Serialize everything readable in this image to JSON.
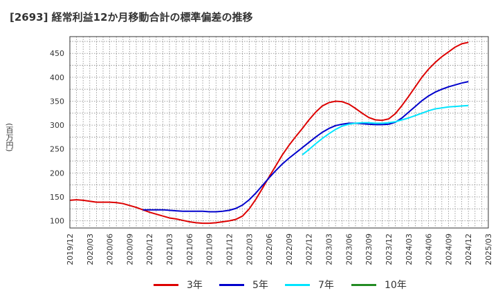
{
  "title": "[2693]  経常利益12か月移動合計の標準偏差の推移",
  "unit_label": "(百万円)",
  "chart_data": {
    "type": "line",
    "title": "[2693]  経常利益12か月移動合計の標準偏差の推移",
    "ylabel": "(百万円)",
    "xlabel": "",
    "ylim": [
      85,
      485
    ],
    "yticks": [
      100,
      150,
      200,
      250,
      300,
      350,
      400,
      450
    ],
    "xlim": [
      "2019/12",
      "2025/03"
    ],
    "xticks": [
      "2019/12",
      "2020/03",
      "2020/06",
      "2020/09",
      "2020/12",
      "2021/03",
      "2021/06",
      "2021/09",
      "2021/12",
      "2022/03",
      "2022/06",
      "2022/09",
      "2022/12",
      "2023/03",
      "2023/06",
      "2023/09",
      "2023/12",
      "2024/03",
      "2024/06",
      "2024/09",
      "2024/12",
      "2025/03"
    ],
    "grid": true,
    "legend_position": "bottom",
    "series": [
      {
        "name": "3年",
        "color": "#dd0000",
        "points": [
          [
            "2019/12",
            143
          ],
          [
            "2020/01",
            144
          ],
          [
            "2020/02",
            143
          ],
          [
            "2020/03",
            141
          ],
          [
            "2020/04",
            139
          ],
          [
            "2020/05",
            139
          ],
          [
            "2020/06",
            139
          ],
          [
            "2020/07",
            138
          ],
          [
            "2020/08",
            136
          ],
          [
            "2020/09",
            132
          ],
          [
            "2020/10",
            128
          ],
          [
            "2020/11",
            123
          ],
          [
            "2020/12",
            118
          ],
          [
            "2021/01",
            114
          ],
          [
            "2021/02",
            110
          ],
          [
            "2021/03",
            106
          ],
          [
            "2021/04",
            104
          ],
          [
            "2021/05",
            101
          ],
          [
            "2021/06",
            98
          ],
          [
            "2021/07",
            96
          ],
          [
            "2021/08",
            95
          ],
          [
            "2021/09",
            95
          ],
          [
            "2021/10",
            96
          ],
          [
            "2021/11",
            98
          ],
          [
            "2021/12",
            100
          ],
          [
            "2022/01",
            103
          ],
          [
            "2022/02",
            110
          ],
          [
            "2022/03",
            125
          ],
          [
            "2022/04",
            145
          ],
          [
            "2022/05",
            168
          ],
          [
            "2022/06",
            192
          ],
          [
            "2022/07",
            215
          ],
          [
            "2022/08",
            238
          ],
          [
            "2022/09",
            258
          ],
          [
            "2022/10",
            276
          ],
          [
            "2022/11",
            293
          ],
          [
            "2022/12",
            311
          ],
          [
            "2023/01",
            327
          ],
          [
            "2023/02",
            340
          ],
          [
            "2023/03",
            347
          ],
          [
            "2023/04",
            350
          ],
          [
            "2023/05",
            349
          ],
          [
            "2023/06",
            344
          ],
          [
            "2023/07",
            335
          ],
          [
            "2023/08",
            325
          ],
          [
            "2023/09",
            316
          ],
          [
            "2023/10",
            311
          ],
          [
            "2023/11",
            310
          ],
          [
            "2023/12",
            313
          ],
          [
            "2024/01",
            324
          ],
          [
            "2024/02",
            341
          ],
          [
            "2024/03",
            360
          ],
          [
            "2024/04",
            380
          ],
          [
            "2024/05",
            400
          ],
          [
            "2024/06",
            417
          ],
          [
            "2024/07",
            431
          ],
          [
            "2024/08",
            443
          ],
          [
            "2024/09",
            453
          ],
          [
            "2024/10",
            463
          ],
          [
            "2024/11",
            470
          ],
          [
            "2024/12",
            473
          ]
        ]
      },
      {
        "name": "5年",
        "color": "#0000cc",
        "points": [
          [
            "2020/11",
            123
          ],
          [
            "2020/12",
            123
          ],
          [
            "2021/01",
            123
          ],
          [
            "2021/02",
            123
          ],
          [
            "2021/03",
            122
          ],
          [
            "2021/04",
            121
          ],
          [
            "2021/05",
            120
          ],
          [
            "2021/06",
            120
          ],
          [
            "2021/07",
            120
          ],
          [
            "2021/08",
            120
          ],
          [
            "2021/09",
            119
          ],
          [
            "2021/10",
            119
          ],
          [
            "2021/11",
            120
          ],
          [
            "2021/12",
            122
          ],
          [
            "2022/01",
            126
          ],
          [
            "2022/02",
            133
          ],
          [
            "2022/03",
            144
          ],
          [
            "2022/04",
            158
          ],
          [
            "2022/05",
            174
          ],
          [
            "2022/06",
            190
          ],
          [
            "2022/07",
            205
          ],
          [
            "2022/08",
            219
          ],
          [
            "2022/09",
            231
          ],
          [
            "2022/10",
            242
          ],
          [
            "2022/11",
            253
          ],
          [
            "2022/12",
            264
          ],
          [
            "2023/01",
            275
          ],
          [
            "2023/02",
            285
          ],
          [
            "2023/03",
            293
          ],
          [
            "2023/04",
            299
          ],
          [
            "2023/05",
            302
          ],
          [
            "2023/06",
            304
          ],
          [
            "2023/07",
            304
          ],
          [
            "2023/08",
            303
          ],
          [
            "2023/09",
            302
          ],
          [
            "2023/10",
            301
          ],
          [
            "2023/11",
            301
          ],
          [
            "2023/12",
            302
          ],
          [
            "2024/01",
            306
          ],
          [
            "2024/02",
            315
          ],
          [
            "2024/03",
            327
          ],
          [
            "2024/04",
            339
          ],
          [
            "2024/05",
            351
          ],
          [
            "2024/06",
            361
          ],
          [
            "2024/07",
            369
          ],
          [
            "2024/08",
            375
          ],
          [
            "2024/09",
            380
          ],
          [
            "2024/10",
            384
          ],
          [
            "2024/11",
            388
          ],
          [
            "2024/12",
            391
          ]
        ]
      },
      {
        "name": "7年",
        "color": "#00e5ff",
        "points": [
          [
            "2022/11",
            238
          ],
          [
            "2022/12",
            249
          ],
          [
            "2023/01",
            261
          ],
          [
            "2023/02",
            272
          ],
          [
            "2023/03",
            282
          ],
          [
            "2023/04",
            291
          ],
          [
            "2023/05",
            298
          ],
          [
            "2023/06",
            302
          ],
          [
            "2023/07",
            304
          ],
          [
            "2023/08",
            305
          ],
          [
            "2023/09",
            305
          ],
          [
            "2023/10",
            304
          ],
          [
            "2023/11",
            304
          ],
          [
            "2023/12",
            305
          ],
          [
            "2024/01",
            307
          ],
          [
            "2024/02",
            311
          ],
          [
            "2024/03",
            315
          ],
          [
            "2024/04",
            320
          ],
          [
            "2024/05",
            325
          ],
          [
            "2024/06",
            330
          ],
          [
            "2024/07",
            334
          ],
          [
            "2024/08",
            336
          ],
          [
            "2024/09",
            338
          ],
          [
            "2024/10",
            339
          ],
          [
            "2024/11",
            340
          ],
          [
            "2024/12",
            341
          ]
        ]
      },
      {
        "name": "10年",
        "color": "#228b22",
        "points": []
      }
    ]
  }
}
